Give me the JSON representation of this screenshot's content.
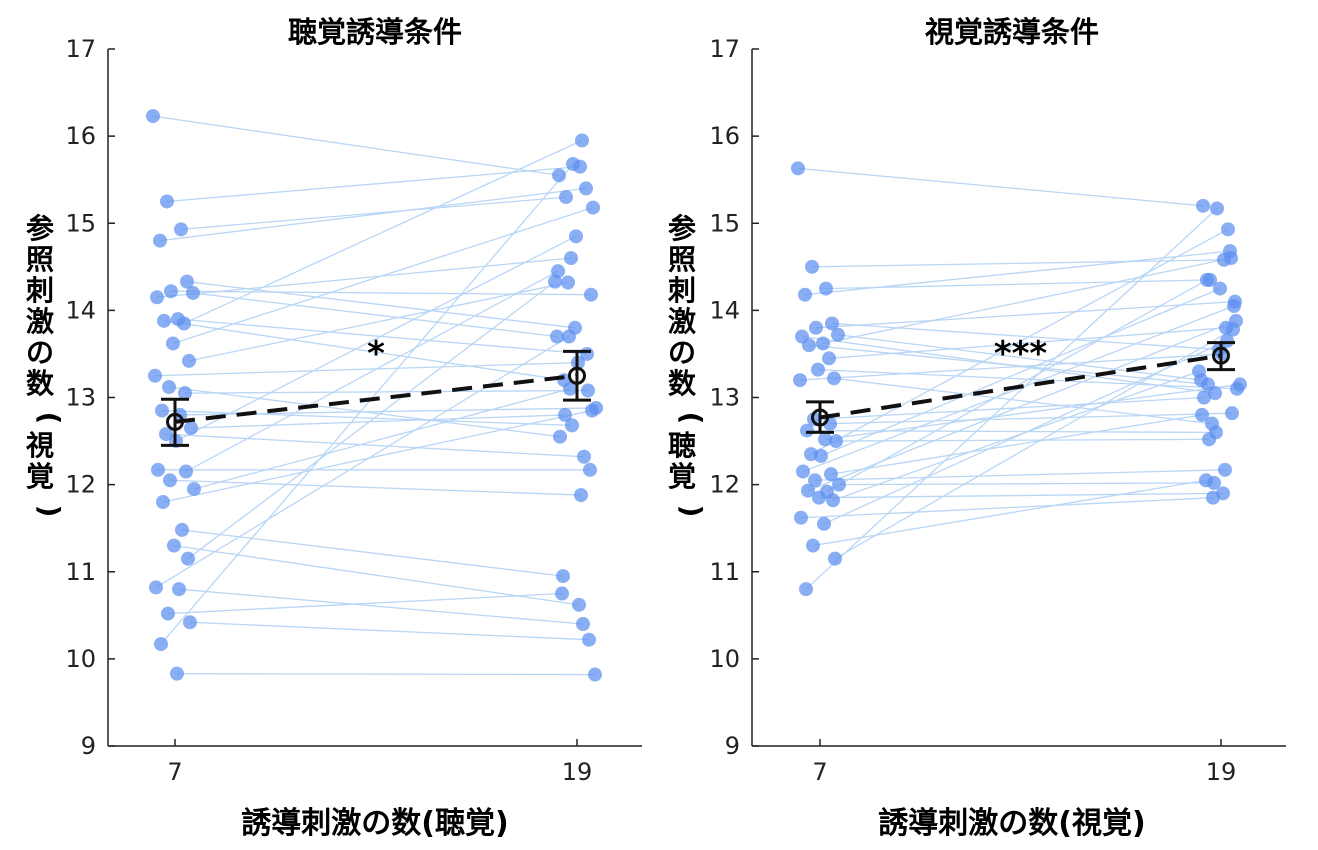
{
  "chart_data": [
    {
      "type": "scatter",
      "title": "聴覚誘導条件",
      "xlabel": "誘導刺激の数(聴覚)",
      "ylabel_chars": [
        "参",
        "照",
        "刺",
        "激",
        "の",
        "数",
        "(",
        "視",
        "覚",
        ")"
      ],
      "x_categories": [
        "7",
        "19"
      ],
      "ylim": [
        9,
        17
      ],
      "yticks": [
        "9",
        "10",
        "11",
        "12",
        "13",
        "14",
        "15",
        "16",
        "17"
      ],
      "significance": "*",
      "mean": {
        "x7": 12.72,
        "x19": 13.25
      },
      "error_bar": {
        "x7": [
          12.45,
          12.98
        ],
        "x19": [
          12.97,
          13.53
        ]
      },
      "pairs": [
        [
          16.23,
          15.55
        ],
        [
          15.25,
          15.65
        ],
        [
          14.93,
          15.3
        ],
        [
          14.8,
          15.4
        ],
        [
          14.33,
          13.8
        ],
        [
          14.22,
          14.18
        ],
        [
          14.2,
          13.7
        ],
        [
          14.15,
          14.6
        ],
        [
          13.9,
          13.5
        ],
        [
          13.88,
          13.2
        ],
        [
          13.85,
          15.95
        ],
        [
          13.62,
          15.18
        ],
        [
          13.42,
          14.32
        ],
        [
          13.25,
          13.4
        ],
        [
          13.12,
          12.55
        ],
        [
          13.05,
          13.08
        ],
        [
          12.85,
          12.68
        ],
        [
          12.8,
          12.88
        ],
        [
          12.65,
          12.8
        ],
        [
          12.58,
          12.32
        ],
        [
          12.5,
          14.85
        ],
        [
          12.17,
          12.17
        ],
        [
          12.15,
          14.45
        ],
        [
          12.05,
          11.88
        ],
        [
          11.95,
          13.1
        ],
        [
          11.8,
          12.85
        ],
        [
          11.48,
          10.95
        ],
        [
          11.3,
          10.62
        ],
        [
          11.15,
          14.33
        ],
        [
          10.82,
          13.7
        ],
        [
          10.8,
          10.4
        ],
        [
          10.52,
          10.75
        ],
        [
          10.42,
          10.22
        ],
        [
          10.17,
          15.68
        ],
        [
          9.83,
          9.82
        ]
      ]
    },
    {
      "type": "scatter",
      "title": "視覚誘導条件",
      "xlabel": "誘導刺激の数(視覚)",
      "ylabel_chars": [
        "参",
        "照",
        "刺",
        "激",
        "の",
        "数",
        "(",
        "聴",
        "覚",
        ")"
      ],
      "x_categories": [
        "7",
        "19"
      ],
      "ylim": [
        9,
        17
      ],
      "yticks": [
        "9",
        "10",
        "11",
        "12",
        "13",
        "14",
        "15",
        "16",
        "17"
      ],
      "significance": "***",
      "mean": {
        "x7": 12.77,
        "x19": 13.48
      },
      "error_bar": {
        "x7": [
          12.6,
          12.95
        ],
        "x19": [
          13.32,
          13.63
        ]
      },
      "pairs": [
        [
          15.63,
          15.2
        ],
        [
          14.5,
          14.58
        ],
        [
          14.25,
          14.35
        ],
        [
          14.18,
          14.68
        ],
        [
          13.85,
          13.55
        ],
        [
          13.8,
          14.1
        ],
        [
          13.72,
          13.2
        ],
        [
          13.7,
          13.05
        ],
        [
          13.62,
          14.6
        ],
        [
          13.6,
          13.15
        ],
        [
          13.45,
          13.8
        ],
        [
          13.32,
          13.1
        ],
        [
          13.22,
          12.7
        ],
        [
          13.2,
          13.5
        ],
        [
          12.75,
          13.0
        ],
        [
          12.7,
          12.82
        ],
        [
          12.62,
          12.6
        ],
        [
          12.52,
          13.15
        ],
        [
          12.5,
          12.52
        ],
        [
          12.35,
          14.93
        ],
        [
          12.33,
          14.25
        ],
        [
          12.15,
          14.05
        ],
        [
          12.12,
          12.8
        ],
        [
          12.05,
          12.17
        ],
        [
          12.0,
          12.02
        ],
        [
          11.93,
          13.88
        ],
        [
          11.92,
          14.35
        ],
        [
          11.85,
          11.9
        ],
        [
          11.82,
          13.3
        ],
        [
          11.62,
          11.85
        ],
        [
          11.55,
          13.65
        ],
        [
          11.3,
          12.05
        ],
        [
          11.15,
          13.78
        ],
        [
          10.8,
          15.17
        ]
      ]
    }
  ]
}
